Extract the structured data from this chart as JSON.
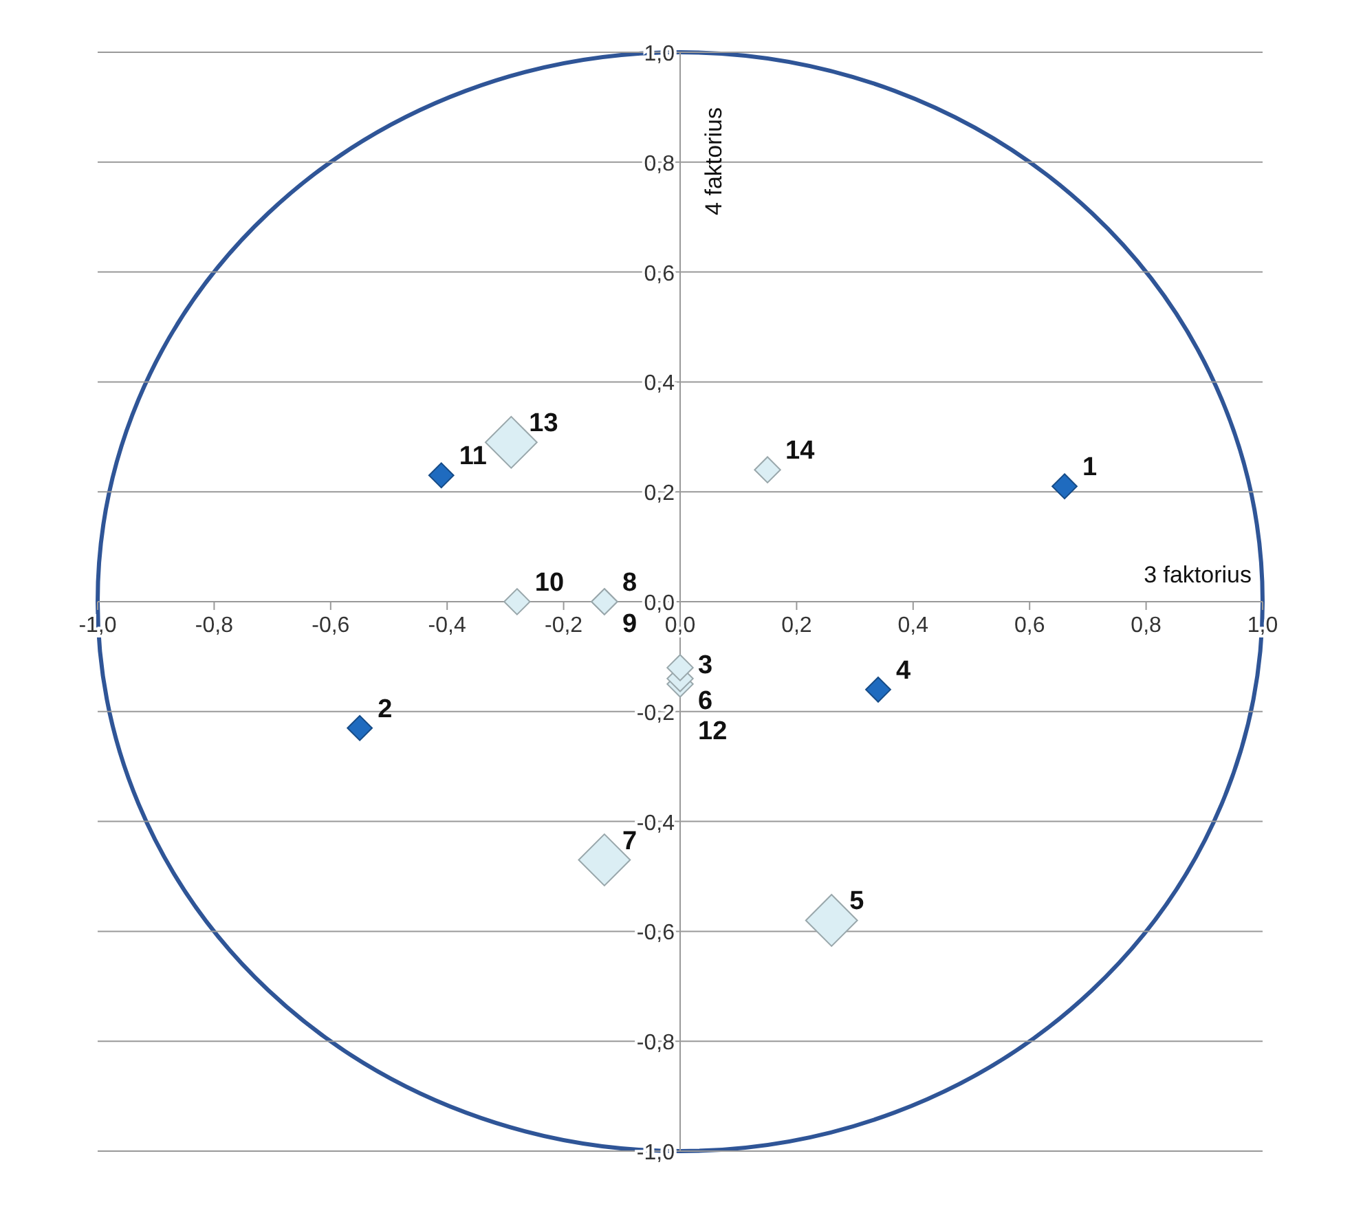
{
  "chart_data": {
    "type": "scatter",
    "xlabel": "3 faktorius",
    "ylabel": "4 faktorius",
    "xlim": [
      -1,
      1
    ],
    "ylim": [
      -1,
      1
    ],
    "xticks": [
      {
        "value": -1,
        "label": "-1,0"
      },
      {
        "value": -0.8,
        "label": "-0,8"
      },
      {
        "value": -0.6,
        "label": "-0,6"
      },
      {
        "value": -0.4,
        "label": "-0,4"
      },
      {
        "value": -0.2,
        "label": "-0,2"
      },
      {
        "value": 0,
        "label": "0,0"
      },
      {
        "value": 0.2,
        "label": "0,2"
      },
      {
        "value": 0.4,
        "label": "0,4"
      },
      {
        "value": 0.6,
        "label": "0,6"
      },
      {
        "value": 0.8,
        "label": "0,8"
      },
      {
        "value": 1,
        "label": "1,0"
      }
    ],
    "yticks": [
      {
        "value": -1,
        "label": "-1,0"
      },
      {
        "value": -0.8,
        "label": "-0,8"
      },
      {
        "value": -0.6,
        "label": "-0,6"
      },
      {
        "value": -0.4,
        "label": "-0,4"
      },
      {
        "value": -0.2,
        "label": "-0,2"
      },
      {
        "value": 0,
        "label": "0,0"
      },
      {
        "value": 0.2,
        "label": "0,2"
      },
      {
        "value": 0.4,
        "label": "0,4"
      },
      {
        "value": 0.6,
        "label": "0,6"
      },
      {
        "value": 0.8,
        "label": "0,8"
      },
      {
        "value": 1,
        "label": "1,0"
      }
    ],
    "grid": "y",
    "legend": false,
    "marker": "diamond",
    "series": [
      {
        "color": "#1f6bbf",
        "x": [
          0.66,
          -0.55,
          0.34,
          -0.41
        ],
        "values": [
          0.21,
          -0.23,
          -0.16,
          0.23
        ]
      },
      {
        "type": "bubble",
        "color": "#dbeef4",
        "x": [
          0.0,
          0.26,
          0.0,
          -0.13,
          -0.13,
          -0.13,
          -0.28,
          0.0,
          -0.29,
          0.15
        ],
        "values": [
          -0.15,
          -0.58,
          -0.14,
          -0.47,
          0.0,
          0.0,
          0.0,
          -0.12,
          0.29,
          0.24
        ],
        "sizes": [
          0.25,
          1,
          0.25,
          1,
          0.25,
          0.25,
          0.25,
          0.25,
          1,
          0.25
        ]
      }
    ],
    "annotations": [
      {
        "text": "1",
        "x": 0.66,
        "y": 0.21
      },
      {
        "text": "2",
        "x": -0.55,
        "y": -0.23
      },
      {
        "text": "3",
        "x": 0.0,
        "y": -0.15
      },
      {
        "text": "4",
        "x": 0.34,
        "y": -0.16
      },
      {
        "text": "5",
        "x": 0.26,
        "y": -0.58
      },
      {
        "text": "6",
        "x": 0.0,
        "y": -0.14
      },
      {
        "text": "7",
        "x": -0.13,
        "y": -0.47
      },
      {
        "text": "8",
        "x": -0.13,
        "y": 0.0
      },
      {
        "text": "9",
        "x": -0.13,
        "y": 0.0
      },
      {
        "text": "10",
        "x": -0.28,
        "y": 0.0
      },
      {
        "text": "11",
        "x": -0.41,
        "y": 0.23
      },
      {
        "text": "12",
        "x": 0.0,
        "y": -0.12
      },
      {
        "text": "13",
        "x": -0.29,
        "y": 0.29
      },
      {
        "text": "14",
        "x": 0.15,
        "y": 0.24
      }
    ]
  }
}
